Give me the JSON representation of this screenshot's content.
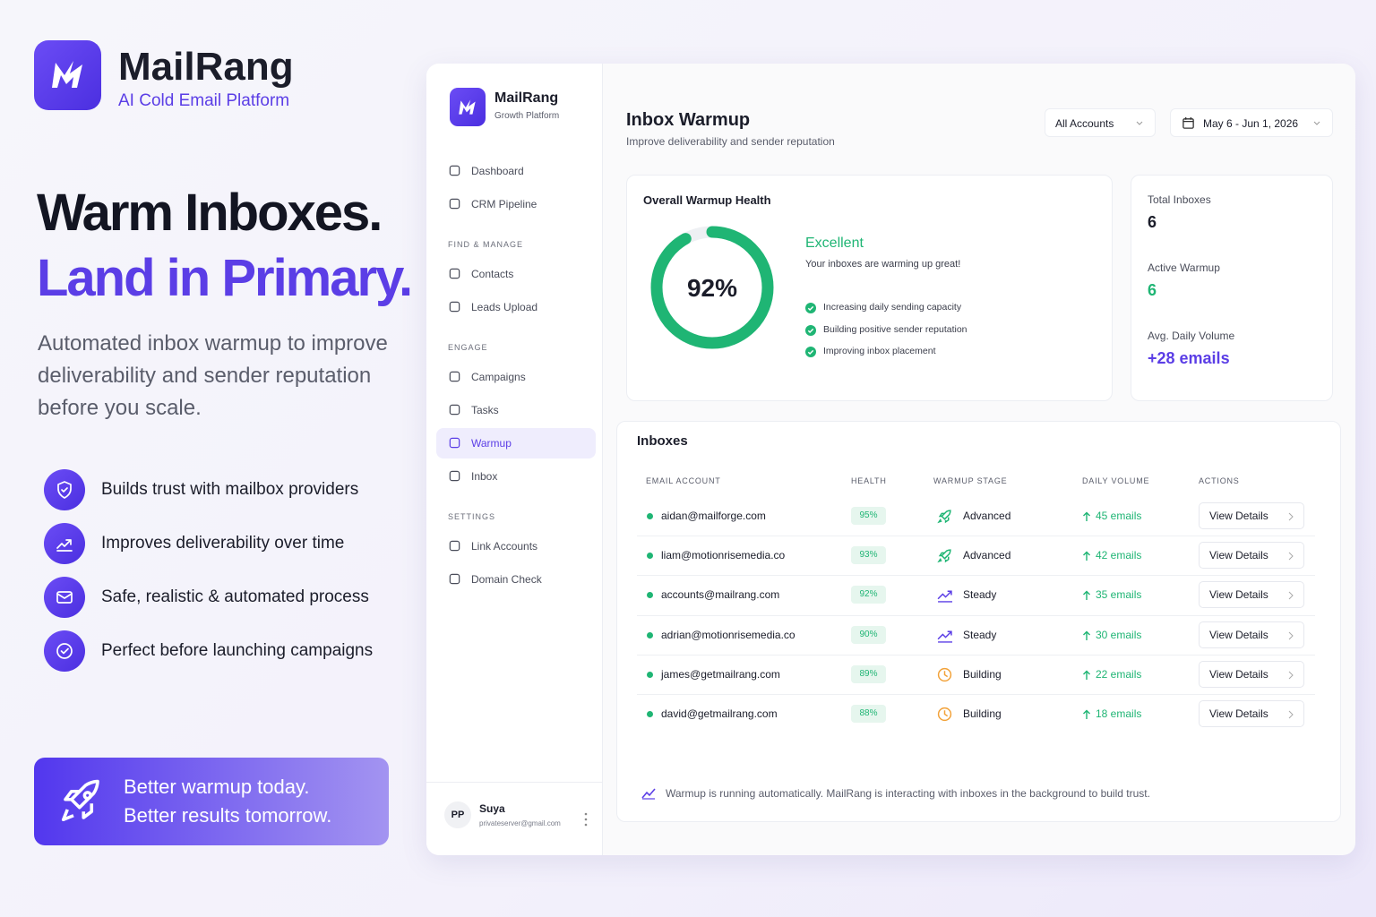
{
  "brand": {
    "name": "MailRang",
    "tagline": "AI Cold Email Platform"
  },
  "hero": {
    "line1": "Warm Inboxes.",
    "line2": "Land in Primary.",
    "description": "Automated inbox warmup to improve deliverability and sender reputation before you scale."
  },
  "features": [
    "Builds trust with mailbox providers",
    "Improves deliverability over time",
    "Safe, realistic & automated process",
    "Perfect before launching campaigns"
  ],
  "banner": {
    "line1": "Better warmup today.",
    "line2": "Better results tomorrow."
  },
  "sidebar": {
    "brand": "MailRang",
    "subtitle": "Growth Platform",
    "groups": [
      {
        "items": [
          "Dashboard",
          "CRM Pipeline"
        ]
      },
      {
        "label": "FIND & MANAGE",
        "items": [
          "Contacts",
          "Leads Upload"
        ]
      },
      {
        "label": "ENGAGE",
        "items": [
          "Campaigns",
          "Tasks",
          "Warmup",
          "Inbox"
        ]
      },
      {
        "label": "SETTINGS",
        "items": [
          "Link Accounts",
          "Domain Check"
        ]
      }
    ],
    "user": {
      "initials": "PP",
      "name": "Suya",
      "email": "privateserver@gmail.com"
    }
  },
  "header": {
    "title": "Inbox Warmup",
    "subtitle": "Improve deliverability and sender reputation",
    "account_filter": "All Accounts",
    "date_range": "May 6 - Jun 1, 2026"
  },
  "health": {
    "title": "Overall Warmup Health",
    "score": {
      "value": 92,
      "label": "92%"
    },
    "status": "Excellent",
    "message": "Your inboxes are warming up great!",
    "checks": [
      "Increasing daily sending capacity",
      "Building positive sender reputation",
      "Improving inbox placement"
    ]
  },
  "stats": [
    {
      "label": "Total Inboxes",
      "value": 6
    },
    {
      "label": "Active Warmup",
      "value": 6
    },
    {
      "label": "Avg. Daily Volume",
      "value": "+28 emails"
    }
  ],
  "inboxes": {
    "title": "Inboxes",
    "columns": [
      "EMAIL ACCOUNT",
      "HEALTH",
      "WARMUP STAGE",
      "DAILY VOLUME",
      "ACTIONS"
    ],
    "rows": [
      [
        "aidan@mailforge.com",
        "95%",
        "Advanced",
        "45 emails",
        "View Details"
      ],
      [
        "liam@motionrisemedia.co",
        "93%",
        "Advanced",
        "42 emails",
        "View Details"
      ],
      [
        "accounts@mailrang.com",
        "92%",
        "Steady",
        "35 emails",
        "View Details"
      ],
      [
        "adrian@motionrisemedia.co",
        "90%",
        "Steady",
        "30 emails",
        "View Details"
      ],
      [
        "james@getmailrang.com",
        "89%",
        "Building",
        "22 emails",
        "View Details"
      ],
      [
        "david@getmailrang.com",
        "88%",
        "Building",
        "18 emails",
        "View Details"
      ]
    ],
    "note": "Warmup is running automatically. MailRang is interacting with inboxes in the background to build trust."
  }
}
